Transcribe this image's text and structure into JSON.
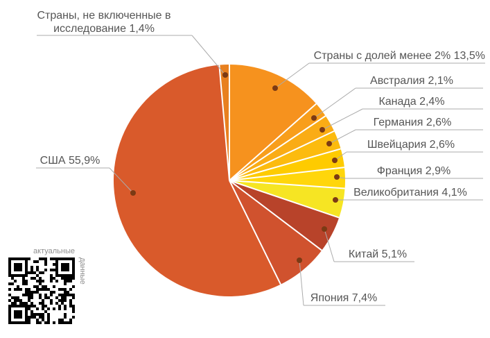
{
  "chart_data": {
    "type": "pie",
    "direction": "clockwise",
    "start_angle_deg": 0,
    "unit": "%",
    "legend_position": "none",
    "grid": false,
    "slices": [
      {
        "label": "Страны с долей менее 2%",
        "value": 13.5,
        "display": "Страны с долей менее 2% 13,5%",
        "color": "#F6921E"
      },
      {
        "label": "Австралия",
        "value": 2.1,
        "display": "Австралия 2,1%",
        "color": "#F89E1B"
      },
      {
        "label": "Канада",
        "value": 2.4,
        "display": "Канада 2,4%",
        "color": "#FAAC15"
      },
      {
        "label": "Германия",
        "value": 2.6,
        "display": "Германия 2,6%",
        "color": "#FCBB0E"
      },
      {
        "label": "Швейцария",
        "value": 2.6,
        "display": "Швейцария 2,6%",
        "color": "#FECB00"
      },
      {
        "label": "Франция",
        "value": 2.9,
        "display": "Франция 2,9%",
        "color": "#FFD60B"
      },
      {
        "label": "Великобритания",
        "value": 4.1,
        "display": "Великобритания 4,1%",
        "color": "#F6E523"
      },
      {
        "label": "Китай",
        "value": 5.1,
        "display": "Китай 5,1%",
        "color": "#B8432A"
      },
      {
        "label": "Япония",
        "value": 7.4,
        "display": "Япония 7,4%",
        "color": "#D0522E"
      },
      {
        "label": "США",
        "value": 55.9,
        "display": "США 55,9%",
        "color": "#D95A2B"
      },
      {
        "label": "Страны, не включенные в исследование",
        "value": 1.4,
        "display": "Страны, не включенные в исследование 1,4%",
        "display_lines": [
          "Страны, не включенные в",
          "исследование 1,4%"
        ],
        "color": "#E8801F"
      }
    ],
    "callout_style": {
      "line_color": "#ABABAB",
      "dot_color": "#7B3A14",
      "text_color": "#555555",
      "separator_color": "#FFFFFF"
    }
  },
  "qr": {
    "caption_top": "актуальные",
    "caption_side": "данные",
    "caption_color": "#8E8E8E"
  }
}
